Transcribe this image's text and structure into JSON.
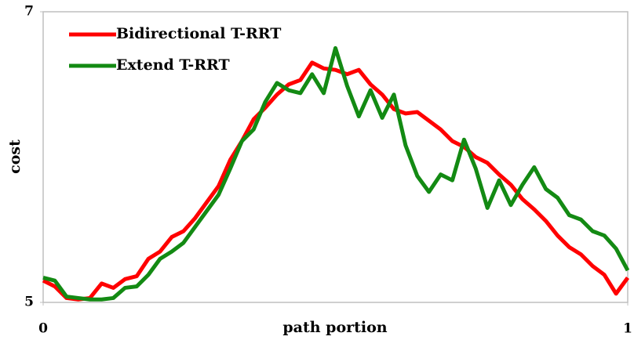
{
  "chart_data": {
    "type": "line",
    "xlabel": "path portion",
    "ylabel": "cost",
    "x": [
      0,
      0.02,
      0.04,
      0.06,
      0.08,
      0.1,
      0.12,
      0.14,
      0.16,
      0.18,
      0.2,
      0.22,
      0.24,
      0.26,
      0.28,
      0.3,
      0.32,
      0.34,
      0.36,
      0.38,
      0.4,
      0.42,
      0.44,
      0.46,
      0.48,
      0.5,
      0.52,
      0.54,
      0.56,
      0.58,
      0.6,
      0.62,
      0.64,
      0.66,
      0.68,
      0.7,
      0.72,
      0.74,
      0.76,
      0.78,
      0.8,
      0.82,
      0.84,
      0.86,
      0.88,
      0.9,
      0.92,
      0.94,
      0.96,
      0.98,
      1
    ],
    "series": [
      {
        "name": "Bidirectional T-RRT",
        "color": "#ff0000",
        "values": [
          5.15,
          5.11,
          5.03,
          5.02,
          5.03,
          5.13,
          5.1,
          5.16,
          5.18,
          5.3,
          5.35,
          5.45,
          5.49,
          5.58,
          5.69,
          5.8,
          5.98,
          6.11,
          6.26,
          6.34,
          6.43,
          6.5,
          6.53,
          6.65,
          6.61,
          6.6,
          6.57,
          6.6,
          6.5,
          6.43,
          6.33,
          6.3,
          6.31,
          6.25,
          6.19,
          6.11,
          6.07,
          6,
          5.96,
          5.88,
          5.81,
          5.71,
          5.64,
          5.56,
          5.46,
          5.38,
          5.33,
          5.25,
          5.19,
          5.06,
          5.17
        ]
      },
      {
        "name": "Extend T-RRT",
        "color": "#138a13",
        "values": [
          5.17,
          5.15,
          5.04,
          5.03,
          5.02,
          5.02,
          5.03,
          5.1,
          5.11,
          5.19,
          5.3,
          5.35,
          5.41,
          5.52,
          5.63,
          5.74,
          5.92,
          6.11,
          6.19,
          6.38,
          6.51,
          6.46,
          6.44,
          6.57,
          6.44,
          6.75,
          6.49,
          6.28,
          6.46,
          6.27,
          6.43,
          6.08,
          5.87,
          5.76,
          5.88,
          5.84,
          6.12,
          5.92,
          5.65,
          5.84,
          5.67,
          5.81,
          5.93,
          5.78,
          5.72,
          5.6,
          5.57,
          5.49,
          5.46,
          5.37,
          5.22
        ]
      }
    ],
    "xlim": [
      0,
      1
    ],
    "xticks": [
      0,
      1
    ],
    "ylim": [
      5,
      7
    ],
    "yticks": [
      5,
      7
    ],
    "legend": "top-left"
  }
}
